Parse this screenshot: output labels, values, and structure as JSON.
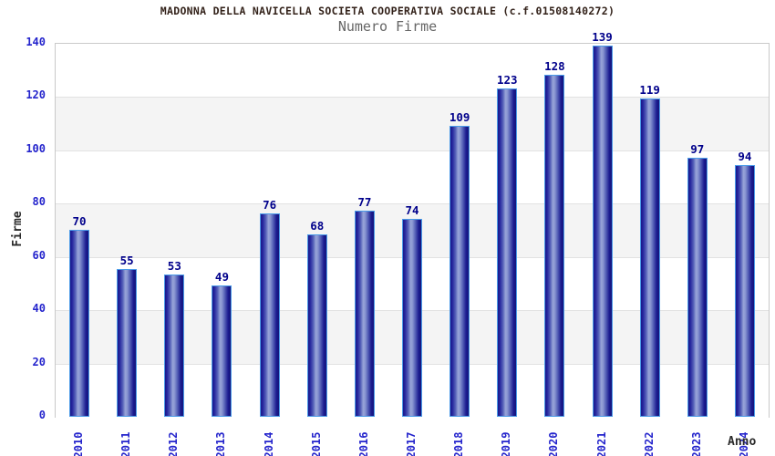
{
  "title": "MADONNA DELLA NAVICELLA SOCIETA COOPERATIVA SOCIALE (c.f.01508140272)",
  "subtitle": "Numero Firme",
  "colors": {
    "tick_label_blue": "#2424cc",
    "value_label_navy": "#00008b",
    "bar_dark": "#1a1a8a",
    "bar_highlight": "#98a4d8",
    "bar_border": "#4b9be8",
    "band_gray": "#f4f4f4",
    "band_white": "#ffffff",
    "gridline": "#e2e2e2",
    "plot_border": "#c9c9c9",
    "title_color": "#33221a",
    "subtitle_color": "#666666",
    "axis_title_color": "#2b2b2b"
  },
  "chart_data": {
    "type": "bar",
    "title": "MADONNA DELLA NAVICELLA SOCIETA COOPERATIVA SOCIALE (c.f.01508140272)",
    "subtitle": "Numero Firme",
    "categories": [
      "2010",
      "2011",
      "2012",
      "2013",
      "2014",
      "2015",
      "2016",
      "2017",
      "2018",
      "2019",
      "2020",
      "2021",
      "2022",
      "2023",
      "2024"
    ],
    "values": [
      70,
      55,
      53,
      49,
      76,
      68,
      77,
      74,
      109,
      123,
      128,
      139,
      119,
      97,
      94
    ],
    "xlabel": "Anno",
    "ylabel": "Firme",
    "ylim": [
      0,
      140
    ],
    "yticks": [
      0,
      20,
      40,
      60,
      80,
      100,
      120,
      140
    ],
    "grid": "horizontal-bands-alternating",
    "legend": "none"
  }
}
